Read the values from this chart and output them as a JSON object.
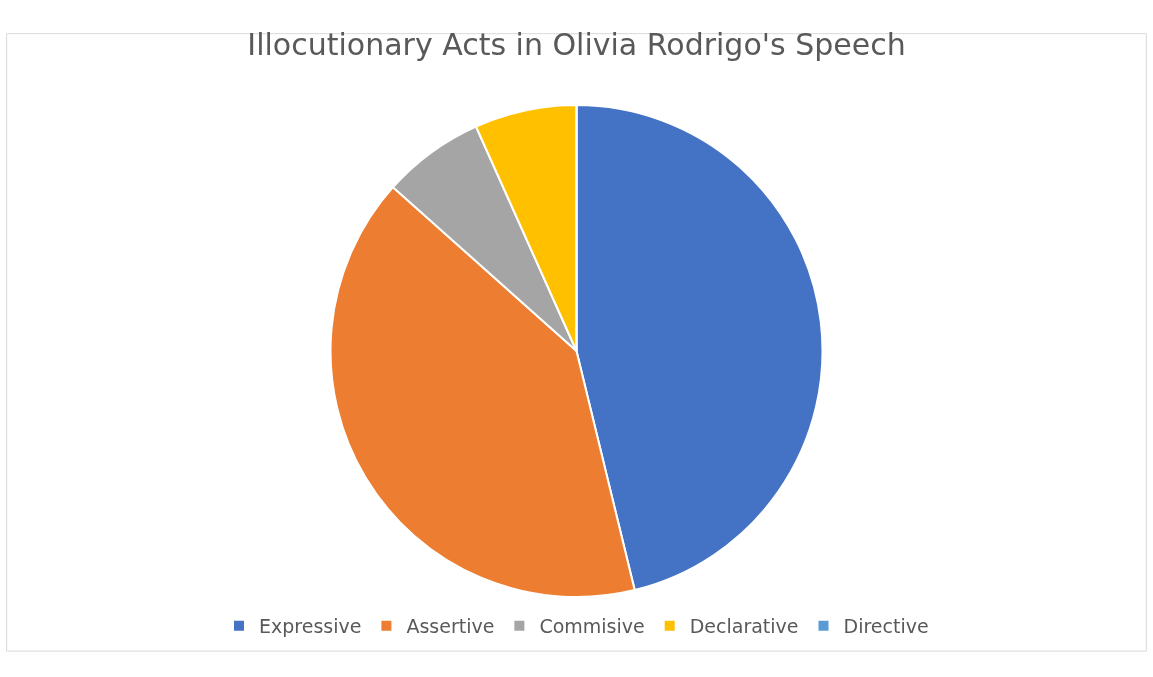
{
  "chart_data": {
    "type": "pie",
    "title": "Illocutionary Acts in Olivia Rodrigo's Speech",
    "categories": [
      "Expressive",
      "Assertive",
      "Commisive",
      "Declarative",
      "Directive"
    ],
    "values": [
      46.2,
      40.4,
      6.7,
      6.7,
      0
    ],
    "colors": [
      "#4472c4",
      "#ed7d31",
      "#a5a5a5",
      "#ffc000",
      "#5b9bd5"
    ],
    "legend": "bottom"
  }
}
